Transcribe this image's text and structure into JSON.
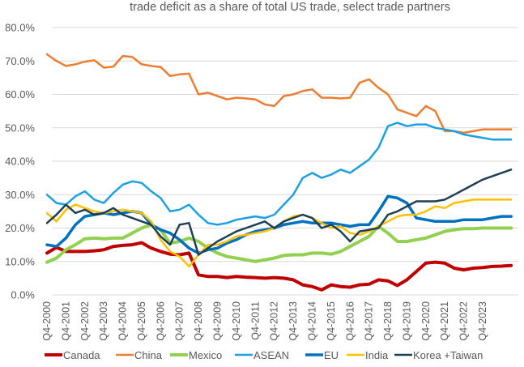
{
  "chart_data": {
    "type": "line",
    "title": "trade deficit as a share of total US trade, select trade partners",
    "xlabel": "",
    "ylabel": "",
    "ylim": [
      0,
      80
    ],
    "yticks": [
      "0.0%",
      "10.0%",
      "20.0%",
      "30.0%",
      "40.0%",
      "50.0%",
      "60.0%",
      "70.0%",
      "80.0%"
    ],
    "ytick_values": [
      0,
      10,
      20,
      30,
      40,
      50,
      60,
      70,
      80
    ],
    "grid": true,
    "legend_position": "bottom",
    "x_step": "semiannual (Q4-2000 to Q2-2025)",
    "xticks": [
      "Q4-2000",
      "Q4-2001",
      "Q4-2002",
      "Q4-2003",
      "Q4-2004",
      "Q4-2005",
      "Q4-2006",
      "Q4-2007",
      "Q4-2008",
      "Q4-2009",
      "Q4-2010",
      "Q4-2011",
      "Q4-2012",
      "Q4-2013",
      "Q4-2014",
      "Q4-2015",
      "Q4-2016",
      "Q4-2017",
      "Q4-2018",
      "Q4-2019",
      "Q4-2020",
      "Q4-2021",
      "Q4-2022",
      "Q4-2023"
    ],
    "series": [
      {
        "name": "Canada",
        "color": "#C00000",
        "width": 4,
        "values": [
          12.5,
          14.2,
          13.0,
          13.0,
          13.0,
          13.2,
          13.5,
          14.5,
          14.8,
          15.0,
          15.6,
          14.0,
          13.0,
          12.2,
          12.0,
          12.5,
          6.0,
          5.5,
          5.5,
          5.2,
          5.5,
          5.3,
          5.2,
          5.0,
          5.2,
          5.0,
          4.5,
          3.0,
          2.5,
          1.5,
          3.0,
          2.5,
          2.3,
          3.0,
          3.2,
          4.5,
          4.2,
          2.8,
          4.5,
          7.0,
          9.5,
          9.8,
          9.5,
          8.0,
          7.5,
          8.0,
          8.2,
          8.5,
          8.6,
          8.8
        ]
      },
      {
        "name": "China",
        "color": "#ED7D31",
        "width": 2.5,
        "values": [
          72.0,
          70.0,
          68.5,
          69.0,
          69.8,
          70.2,
          68.0,
          68.3,
          71.5,
          71.2,
          69.0,
          68.5,
          68.2,
          65.5,
          66.0,
          66.2,
          60.0,
          60.5,
          59.5,
          58.5,
          59.0,
          58.8,
          58.5,
          57.0,
          56.5,
          59.5,
          60.0,
          61.0,
          61.5,
          59.0,
          59.0,
          58.8,
          59.0,
          63.5,
          64.5,
          62.0,
          60.0,
          55.5,
          54.5,
          53.5,
          56.5,
          55.0,
          49.0,
          49.0,
          48.5,
          49.0,
          49.5,
          49.5,
          49.5,
          49.5
        ]
      },
      {
        "name": "Mexico",
        "color": "#92D050",
        "width": 4,
        "values": [
          9.8,
          11.0,
          13.5,
          15.0,
          16.8,
          17.0,
          16.8,
          17.0,
          17.0,
          18.5,
          20.0,
          21.0,
          19.5,
          15.5,
          16.0,
          17.0,
          16.0,
          14.0,
          12.5,
          11.5,
          11.0,
          10.5,
          10.0,
          10.5,
          11.0,
          11.8,
          12.0,
          12.0,
          12.5,
          12.5,
          12.2,
          13.0,
          14.5,
          16.0,
          17.5,
          20.5,
          18.5,
          16.0,
          16.0,
          16.5,
          17.0,
          18.0,
          19.0,
          19.5,
          19.8,
          19.8,
          20.0,
          20.0,
          20.0,
          20.0
        ]
      },
      {
        "name": "ASEAN",
        "color": "#1BA1E2",
        "width": 2.5,
        "values": [
          30.0,
          27.5,
          27.0,
          29.5,
          31.0,
          28.5,
          27.5,
          30.5,
          33.0,
          34.0,
          33.5,
          31.0,
          29.0,
          25.0,
          25.5,
          27.0,
          24.0,
          21.5,
          21.0,
          21.5,
          22.5,
          23.0,
          23.5,
          23.0,
          24.0,
          27.0,
          30.0,
          35.0,
          36.5,
          35.0,
          36.0,
          37.5,
          36.5,
          38.5,
          40.5,
          44.0,
          50.5,
          51.5,
          50.5,
          51.0,
          51.0,
          50.0,
          49.5,
          49.0,
          48.0,
          47.5,
          47.0,
          46.5,
          46.5,
          46.5
        ]
      },
      {
        "name": "EU",
        "color": "#0070C0",
        "width": 3.5,
        "values": [
          15.0,
          14.5,
          17.0,
          21.0,
          23.5,
          24.0,
          24.5,
          24.0,
          24.5,
          25.0,
          24.5,
          21.0,
          19.5,
          18.5,
          16.5,
          14.0,
          12.5,
          13.5,
          14.0,
          15.5,
          16.5,
          18.0,
          19.0,
          19.5,
          20.0,
          21.0,
          21.5,
          22.0,
          21.5,
          21.5,
          21.5,
          21.0,
          20.5,
          21.0,
          21.0,
          25.0,
          29.5,
          29.0,
          27.5,
          23.0,
          22.5,
          22.0,
          22.0,
          22.0,
          22.5,
          22.5,
          22.5,
          23.0,
          23.5,
          23.5
        ]
      },
      {
        "name": "India",
        "color": "#FFC000",
        "width": 2.5,
        "values": [
          24.5,
          22.0,
          25.5,
          27.0,
          26.0,
          25.0,
          24.5,
          25.0,
          25.5,
          25.0,
          24.5,
          22.0,
          16.5,
          13.0,
          11.5,
          8.5,
          12.0,
          15.0,
          15.0,
          16.0,
          17.5,
          18.0,
          18.5,
          19.0,
          20.0,
          22.0,
          23.5,
          24.0,
          23.0,
          21.5,
          20.0,
          20.5,
          18.5,
          18.0,
          19.0,
          20.5,
          22.0,
          23.5,
          24.0,
          24.0,
          25.0,
          26.5,
          26.0,
          27.5,
          28.0,
          28.5,
          28.5,
          28.5,
          28.5,
          28.5
        ]
      },
      {
        "name": "Korea +Taiwan",
        "color": "#1F3F55",
        "width": 2.5,
        "values": [
          21.5,
          24.0,
          27.0,
          24.5,
          25.5,
          24.0,
          24.5,
          26.0,
          24.0,
          23.0,
          22.0,
          21.0,
          17.5,
          15.0,
          21.0,
          21.5,
          12.0,
          14.0,
          16.0,
          17.5,
          19.0,
          20.0,
          21.0,
          22.0,
          20.0,
          22.0,
          23.0,
          24.0,
          23.0,
          20.0,
          21.0,
          19.0,
          16.0,
          19.0,
          19.5,
          20.0,
          24.0,
          25.0,
          26.5,
          28.0,
          28.0,
          28.0,
          28.5,
          30.0,
          31.5,
          33.0,
          34.5,
          35.5,
          36.5,
          37.5
        ]
      }
    ]
  }
}
